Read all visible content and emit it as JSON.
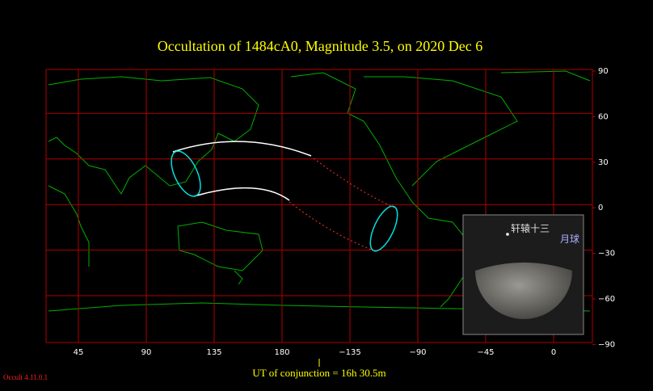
{
  "title": "Occultation  of  1484cA0,      Magnitude 3.5,    on  2020 Dec  6",
  "x_axis": {
    "labels": [
      "45",
      "90",
      "135",
      "180",
      "−135",
      "−90",
      "−45",
      "0"
    ]
  },
  "y_axis": {
    "labels": [
      "90",
      "60",
      "30",
      "0",
      "−30",
      "−60",
      "−90"
    ]
  },
  "inset": {
    "star_label": "轩辕十三",
    "moon_label": "月球"
  },
  "footer": {
    "conjunction": "UT of conjunction = 16h 30.5m",
    "version": "Occult 4.11.0.1"
  }
}
